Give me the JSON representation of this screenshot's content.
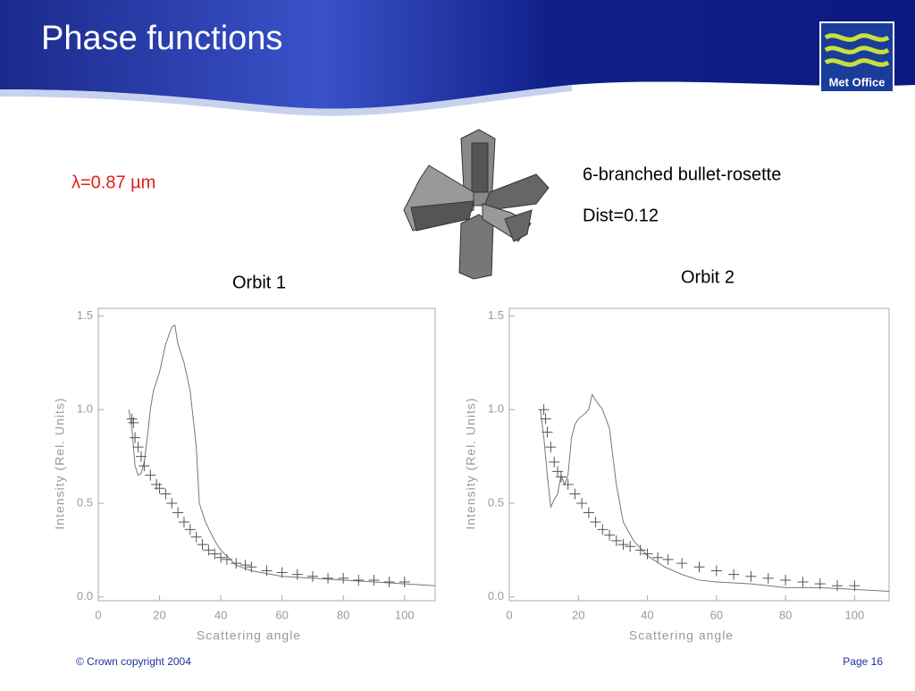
{
  "header": {
    "title": "Phase functions",
    "logo": "Met Office"
  },
  "wavelength": "λ=0.87 µm",
  "particle": {
    "name": "6-branched bullet-rosette",
    "dist": "Dist=0.12"
  },
  "footer": {
    "copyright": "© Crown copyright 2004",
    "page": "Page 16"
  },
  "chart_data": [
    {
      "type": "scatter",
      "title": "Orbit 1",
      "xlabel": "Scattering angle",
      "ylabel": "Intensity (Rel. Units)",
      "xlim": [
        0,
        110
      ],
      "ylim": [
        -0.02,
        1.54
      ],
      "xticks": [
        0,
        20,
        40,
        60,
        80,
        100
      ],
      "yticks": [
        {
          "value": 0,
          "label": "0.0"
        },
        0.5,
        {
          "value": 1,
          "label": "1.0"
        },
        1.5
      ],
      "series": [
        {
          "mode": "line",
          "color": "#777777",
          "x": [
            10,
            11,
            12,
            13,
            14,
            15,
            16,
            17,
            18,
            20,
            22,
            24,
            25,
            26,
            28,
            30,
            32,
            33,
            35,
            38,
            40,
            45,
            50,
            60,
            70,
            80,
            90,
            100,
            110
          ],
          "values": [
            1.0,
            0.9,
            0.7,
            0.65,
            0.66,
            0.72,
            0.85,
            1.0,
            1.1,
            1.2,
            1.35,
            1.44,
            1.45,
            1.35,
            1.25,
            1.1,
            0.8,
            0.5,
            0.4,
            0.3,
            0.25,
            0.17,
            0.14,
            0.11,
            0.1,
            0.09,
            0.08,
            0.07,
            0.06
          ]
        },
        {
          "mode": "markers",
          "color": "#555555",
          "x": [
            11,
            11.5,
            12,
            13,
            14,
            15,
            17,
            19,
            20,
            22,
            24,
            26,
            28,
            30,
            32,
            34,
            36,
            38,
            40,
            42,
            45,
            48,
            50,
            55,
            60,
            65,
            70,
            75,
            80,
            85,
            90,
            95,
            100
          ],
          "values": [
            0.95,
            0.93,
            0.85,
            0.8,
            0.75,
            0.7,
            0.65,
            0.6,
            0.58,
            0.55,
            0.5,
            0.45,
            0.4,
            0.36,
            0.32,
            0.28,
            0.25,
            0.23,
            0.21,
            0.2,
            0.18,
            0.17,
            0.16,
            0.14,
            0.13,
            0.12,
            0.11,
            0.1,
            0.1,
            0.09,
            0.09,
            0.08,
            0.08
          ]
        }
      ]
    },
    {
      "type": "scatter",
      "title": "Orbit 2",
      "xlabel": "Scattering angle",
      "ylabel": "Intensity (Rel. Units)",
      "xlim": [
        0,
        110
      ],
      "ylim": [
        -0.02,
        1.54
      ],
      "xticks": [
        0,
        20,
        40,
        60,
        80,
        100
      ],
      "yticks": [
        {
          "value": 0,
          "label": "0.0"
        },
        0.5,
        {
          "value": 1,
          "label": "1.0"
        },
        1.5
      ],
      "series": [
        {
          "mode": "line",
          "color": "#777777",
          "x": [
            9,
            10,
            11,
            12,
            13,
            14,
            15,
            16,
            17,
            18,
            19,
            20,
            22,
            23,
            24,
            25,
            27,
            29,
            31,
            33,
            36,
            40,
            45,
            50,
            55,
            60,
            70,
            80,
            90,
            100,
            110
          ],
          "values": [
            1.0,
            0.85,
            0.65,
            0.48,
            0.52,
            0.55,
            0.65,
            0.6,
            0.65,
            0.85,
            0.92,
            0.95,
            0.98,
            1.0,
            1.08,
            1.05,
            1.0,
            0.9,
            0.6,
            0.4,
            0.3,
            0.22,
            0.16,
            0.12,
            0.09,
            0.08,
            0.07,
            0.05,
            0.05,
            0.04,
            0.03
          ]
        },
        {
          "mode": "markers",
          "color": "#555555",
          "x": [
            10,
            10.5,
            11,
            12,
            13,
            14,
            15,
            17,
            19,
            21,
            23,
            25,
            27,
            29,
            31,
            33,
            35,
            38,
            40,
            43,
            46,
            50,
            55,
            60,
            65,
            70,
            75,
            80,
            85,
            90,
            95,
            100
          ],
          "values": [
            1.0,
            0.95,
            0.88,
            0.8,
            0.72,
            0.67,
            0.64,
            0.6,
            0.55,
            0.5,
            0.45,
            0.4,
            0.36,
            0.33,
            0.3,
            0.28,
            0.27,
            0.25,
            0.23,
            0.21,
            0.2,
            0.18,
            0.16,
            0.14,
            0.12,
            0.11,
            0.1,
            0.09,
            0.08,
            0.07,
            0.06,
            0.06
          ]
        }
      ]
    }
  ]
}
